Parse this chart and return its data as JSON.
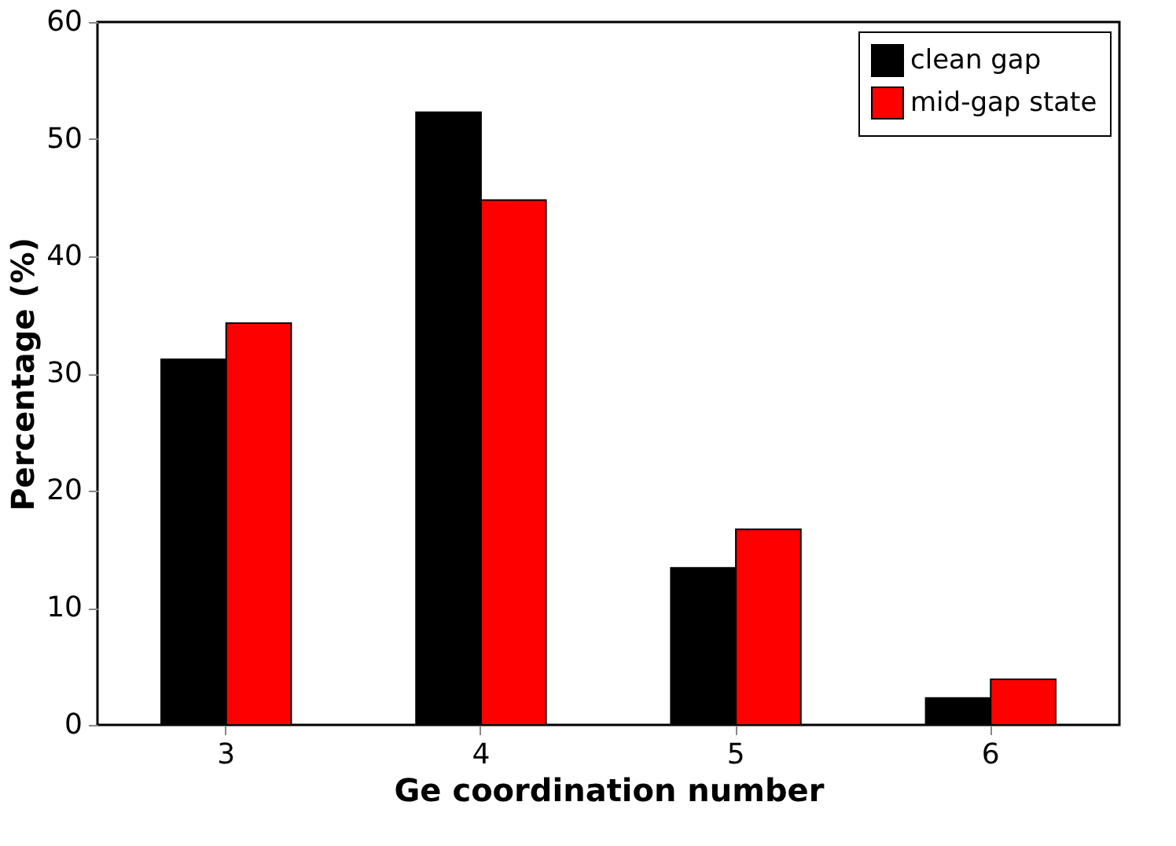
{
  "chart_data": {
    "type": "bar",
    "xlabel": "Ge coordination number",
    "ylabel": "Percentage (%)",
    "categories": [
      "3",
      "4",
      "5",
      "6"
    ],
    "series": [
      {
        "name": "clean gap",
        "color": "#000000",
        "values": [
          31.2,
          52.3,
          13.4,
          2.3
        ]
      },
      {
        "name": "mid-gap state",
        "color": "#ff0000",
        "values": [
          34.3,
          44.8,
          16.7,
          3.9
        ]
      }
    ],
    "ylim": [
      0,
      60
    ],
    "yticks": [
      0,
      10,
      20,
      30,
      40,
      50,
      60
    ],
    "grid": false,
    "legend": "top right"
  }
}
